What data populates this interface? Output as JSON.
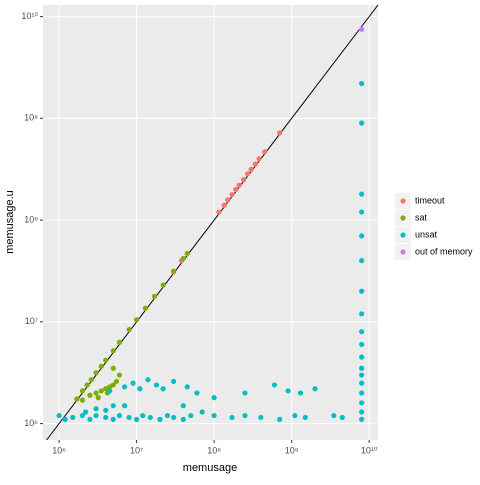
{
  "chart_data": {
    "type": "scatter",
    "x_label": "memusage",
    "y_label": "memusage.u",
    "xscale": "log",
    "yscale": "log",
    "grid": true,
    "xlim": [
      620000,
      13000000000
    ],
    "ylim": [
      690000,
      13000000000
    ],
    "xticks": [
      {
        "value": 1000000,
        "label": "10⁶"
      },
      {
        "value": 10000000,
        "label": "10⁷"
      },
      {
        "value": 100000000,
        "label": "10⁸"
      },
      {
        "value": 1000000000,
        "label": "10⁹"
      },
      {
        "value": 10000000000,
        "label": "10¹⁰"
      }
    ],
    "yticks": [
      {
        "value": 1000000,
        "label": "10⁶"
      },
      {
        "value": 10000000,
        "label": "10⁷"
      },
      {
        "value": 100000000,
        "label": "10⁸"
      },
      {
        "value": 1000000000,
        "label": "10⁹"
      },
      {
        "value": 10000000000,
        "label": "10¹⁰"
      }
    ],
    "legend": "right",
    "series": [
      {
        "name": "timeout",
        "color": "#F8766D",
        "x": [
          30000000,
          38000000,
          115000000,
          135000000,
          150000000,
          170000000,
          190000000,
          210000000,
          240000000,
          270000000,
          300000000,
          340000000,
          380000000,
          450000000,
          700000000
        ],
        "values": [
          31000000,
          40000000,
          120000000,
          140000000,
          158000000,
          178000000,
          200000000,
          220000000,
          250000000,
          285000000,
          315000000,
          355000000,
          400000000,
          470000000,
          720000000
        ]
      },
      {
        "name": "sat",
        "color": "#7CAE00",
        "x": [
          1700000,
          2000000,
          2300000,
          2600000,
          3000000,
          3500000,
          4000000,
          5000000,
          6000000,
          8000000,
          10000000,
          13000000,
          17000000,
          22000000,
          30000000,
          40000000,
          45000000,
          2000000,
          2500000,
          3000000,
          3500000,
          4000000,
          4500000,
          5000000,
          5500000,
          3200000,
          4200000,
          5000000,
          6000000
        ],
        "values": [
          1750000,
          2100000,
          2400000,
          2700000,
          3150000,
          3650000,
          4200000,
          5200000,
          6300000,
          8400000,
          10500000,
          13600000,
          17800000,
          23000000,
          31500000,
          42000000,
          47000000,
          1700000,
          1900000,
          2000000,
          2100000,
          2200000,
          2300000,
          2400000,
          2600000,
          1800000,
          2000000,
          3500000,
          3000000
        ]
      },
      {
        "name": "unsat",
        "color": "#00BFC4",
        "x": [
          1000000,
          1200000,
          1500000,
          2000000,
          2500000,
          3000000,
          4000000,
          5000000,
          6000000,
          8000000,
          10000000,
          12000000,
          15000000,
          20000000,
          25000000,
          30000000,
          40000000,
          50000000,
          70000000,
          100000000,
          170000000,
          250000000,
          400000000,
          700000000,
          1100000000,
          1500000000,
          3500000000,
          4500000000,
          2200000,
          3000000,
          4000000,
          5000000,
          7000000,
          40000000,
          4500000,
          7000000,
          9000000,
          11000000,
          14000000,
          18000000,
          22000000,
          30000000,
          45000000,
          60000000,
          100000000,
          250000000,
          600000000,
          900000000,
          1300000000,
          2000000000,
          8000000000,
          8000000000,
          8000000000,
          8000000000,
          8000000000,
          8000000000,
          8000000000,
          8000000000,
          8000000000,
          8000000000,
          8000000000,
          8000000000,
          8000000000,
          8000000000,
          8000000000,
          8000000000,
          8000000000,
          8000000000
        ],
        "values": [
          1200000,
          1100000,
          1150000,
          1200000,
          1100000,
          1200000,
          1150000,
          1100000,
          1200000,
          1150000,
          1100000,
          1200000,
          1150000,
          1100000,
          1200000,
          1150000,
          1100000,
          1200000,
          1300000,
          1200000,
          1150000,
          1200000,
          1150000,
          1100000,
          1200000,
          1150000,
          1200000,
          1150000,
          1300000,
          1400000,
          1350000,
          1500000,
          1500000,
          1500000,
          2100000,
          2300000,
          2500000,
          2200000,
          2700000,
          2400000,
          2200000,
          2600000,
          2300000,
          2000000,
          1800000,
          2000000,
          2400000,
          2100000,
          2000000,
          2200000,
          1100000,
          1300000,
          1600000,
          2000000,
          2500000,
          3000000,
          3500000,
          4500000,
          6000000,
          8000000,
          12000000,
          20000000,
          40000000,
          70000000,
          120000000,
          180000000,
          900000000,
          2200000000
        ]
      },
      {
        "name": "out of memory",
        "color": "#C77CFF",
        "x": [
          8000000000
        ],
        "values": [
          7500000000
        ]
      }
    ]
  }
}
